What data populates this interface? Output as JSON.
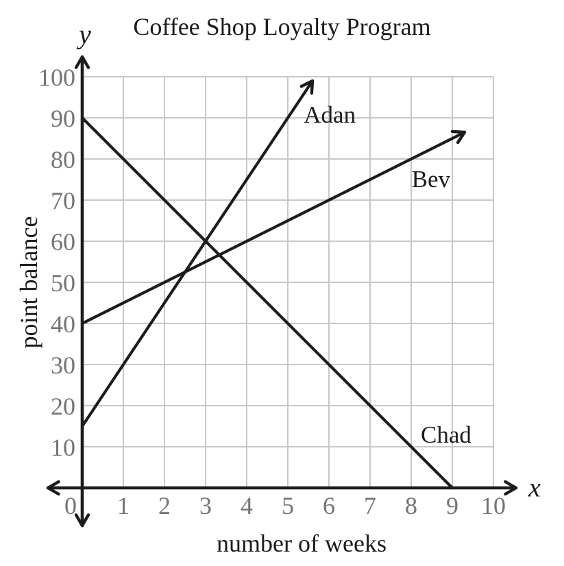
{
  "title": "Coffee Shop Loyalty Program",
  "axes": {
    "y_letter": "y",
    "x_letter": "x",
    "y_label": "point balance",
    "x_label": "number of weeks",
    "x_ticks": [
      "0",
      "1",
      "2",
      "3",
      "4",
      "5",
      "6",
      "7",
      "8",
      "9",
      "10"
    ],
    "y_ticks": [
      "10",
      "20",
      "30",
      "40",
      "50",
      "60",
      "70",
      "80",
      "90",
      "100"
    ]
  },
  "colors": {
    "line": "#1c1c1c",
    "axis": "#1c1c1c",
    "grid": "#c8c8c8",
    "tick_label": "#747474",
    "background": "#ffffff"
  },
  "chart_data": {
    "type": "line",
    "title": "Coffee Shop Loyalty Program",
    "xlabel": "number of weeks",
    "ylabel": "point balance",
    "xlim": [
      0,
      10
    ],
    "ylim": [
      0,
      100
    ],
    "x_tick_step": 1,
    "y_tick_step": 10,
    "grid": true,
    "legend_position": "inline-labels",
    "series": [
      {
        "name": "Adan",
        "slope": 15,
        "y_intercept": 15,
        "equation": "y = 15x + 15",
        "points": [
          [
            0,
            15
          ],
          [
            5.6,
            99
          ]
        ],
        "arrow_end": true,
        "label_at": [
          6.02,
          91
        ]
      },
      {
        "name": "Bev",
        "slope": 5,
        "y_intercept": 40,
        "equation": "y = 5x + 40",
        "points": [
          [
            0,
            40
          ],
          [
            9.3,
            86.5
          ]
        ],
        "arrow_end": true,
        "label_at": [
          8.48,
          75.3
        ]
      },
      {
        "name": "Chad",
        "slope": -10,
        "y_intercept": 90,
        "equation": "y = -10x + 90",
        "points": [
          [
            0,
            90
          ],
          [
            9,
            0
          ]
        ],
        "arrow_end": false,
        "label_at": [
          8.85,
          13.2
        ]
      }
    ],
    "key_intersections": [
      {
        "lines": [
          "Adan",
          "Bev"
        ],
        "x": 2.5,
        "y": 52.5
      },
      {
        "lines": [
          "Adan",
          "Chad"
        ],
        "x": 3,
        "y": 60
      },
      {
        "lines": [
          "Chad",
          "x-axis"
        ],
        "x": 9,
        "y": 0
      }
    ]
  }
}
